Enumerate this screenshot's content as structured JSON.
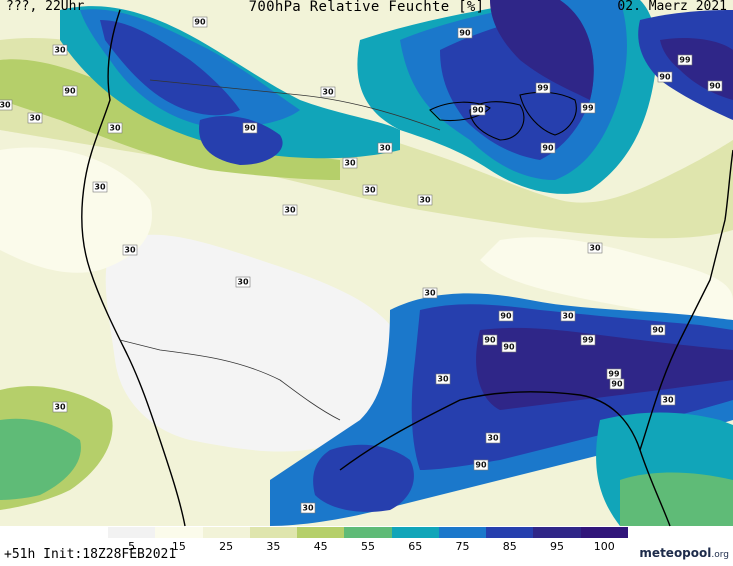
{
  "header": {
    "left_text": "???, 22Uhr",
    "title": "700hPa Relative Feuchte [%]",
    "date": "02. Maerz 2021"
  },
  "footer": {
    "run_info": "+51h  Init:18Z28FEB2021",
    "brand_name": "meteopool",
    "brand_suffix": ".org"
  },
  "legend": {
    "ticks": [
      "5",
      "15",
      "25",
      "35",
      "45",
      "55",
      "65",
      "75",
      "85",
      "95",
      "100"
    ],
    "colors": [
      "#f2f2f2",
      "#fbfbeb",
      "#f2f3d8",
      "#dfe5ad",
      "#b5cf6a",
      "#5fbb77",
      "#11a5b9",
      "#1b78cb",
      "#263fae",
      "#2f2688",
      "#30157a"
    ]
  },
  "contour_labels": [
    {
      "text": "90"
    },
    {
      "text": "90"
    },
    {
      "text": "90"
    },
    {
      "text": "90"
    },
    {
      "text": "99"
    },
    {
      "text": "90"
    },
    {
      "text": "90"
    },
    {
      "text": "30"
    },
    {
      "text": "30"
    },
    {
      "text": "30"
    },
    {
      "text": "30"
    },
    {
      "text": "30"
    },
    {
      "text": "30"
    },
    {
      "text": "30"
    },
    {
      "text": "30"
    },
    {
      "text": "30"
    },
    {
      "text": "30"
    },
    {
      "text": "30"
    },
    {
      "text": "30"
    },
    {
      "text": "30"
    },
    {
      "text": "90"
    },
    {
      "text": "90"
    },
    {
      "text": "99"
    },
    {
      "text": "99"
    },
    {
      "text": "90"
    },
    {
      "text": "90"
    },
    {
      "text": "90"
    },
    {
      "text": "30"
    },
    {
      "text": "30"
    },
    {
      "text": "99"
    },
    {
      "text": "90"
    },
    {
      "text": "30"
    },
    {
      "text": "30"
    },
    {
      "text": "30"
    },
    {
      "text": "30"
    },
    {
      "text": "30"
    },
    {
      "text": "30"
    },
    {
      "text": "99"
    },
    {
      "text": "90"
    },
    {
      "text": "90"
    }
  ]
}
